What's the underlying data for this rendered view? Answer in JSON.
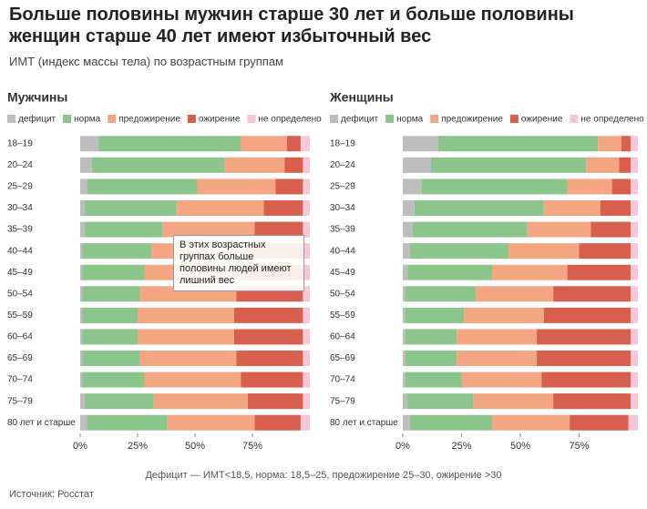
{
  "title": "Больше половины мужчин старше 30 лет и больше половины женщин старше 40 лет имеют избыточный вес",
  "subtitle": "ИМТ (индекс массы тела) по возрастным группам",
  "annotation": "В этих возрастных группах больше половины людей имеют лишний вес",
  "footnote": "Дефицит — ИМТ<18,5, норма: 18,5–25, предожирение 25–30, ожирение >30",
  "source": "Источник: Росстат",
  "chart_data": [
    {
      "type": "bar",
      "orientation": "horizontal",
      "stacked": true,
      "title": "Мужчины",
      "categories": [
        "18–19",
        "20–24",
        "25–29",
        "30–34",
        "35–39",
        "40–44",
        "45–49",
        "50–54",
        "55–59",
        "60–64",
        "65–69",
        "70–74",
        "75–79",
        "80 лет и старше"
      ],
      "series": [
        {
          "name": "дефицит",
          "color": "#bdbdbd",
          "values": [
            8,
            5,
            3,
            2,
            2,
            1,
            1,
            1,
            1,
            1,
            1,
            1,
            2,
            3
          ]
        },
        {
          "name": "норма",
          "color": "#8cc58c",
          "values": [
            62,
            58,
            48,
            40,
            34,
            30,
            27,
            25,
            24,
            24,
            25,
            27,
            30,
            35
          ]
        },
        {
          "name": "предожирение",
          "color": "#f4a582",
          "values": [
            20,
            26,
            34,
            38,
            40,
            41,
            42,
            42,
            42,
            42,
            42,
            42,
            41,
            38
          ]
        },
        {
          "name": "ожирение",
          "color": "#d6604d",
          "values": [
            6,
            8,
            12,
            17,
            21,
            25,
            27,
            29,
            30,
            30,
            29,
            27,
            24,
            20
          ]
        },
        {
          "name": "не определено",
          "color": "#f7c6d9",
          "values": [
            4,
            3,
            3,
            3,
            3,
            3,
            3,
            3,
            3,
            3,
            3,
            3,
            3,
            4
          ]
        }
      ],
      "xlim": [
        0,
        100
      ],
      "xticks": [
        {
          "value": 0,
          "label": "0%"
        },
        {
          "value": 25,
          "label": "25%"
        },
        {
          "value": 50,
          "label": "50%"
        },
        {
          "value": 75,
          "label": "75%"
        }
      ]
    },
    {
      "type": "bar",
      "orientation": "horizontal",
      "stacked": true,
      "title": "Женщины",
      "categories": [
        "18–19",
        "20–24",
        "25–29",
        "30–34",
        "35–39",
        "40–44",
        "45–49",
        "50–54",
        "55–59",
        "60–64",
        "65–69",
        "70–74",
        "75–79",
        "80 лет и старше"
      ],
      "series": [
        {
          "name": "дефицит",
          "color": "#bdbdbd",
          "values": [
            15,
            12,
            8,
            5,
            4,
            3,
            2,
            1,
            1,
            1,
            1,
            1,
            2,
            3
          ]
        },
        {
          "name": "норма",
          "color": "#8cc58c",
          "values": [
            68,
            66,
            62,
            55,
            49,
            42,
            36,
            30,
            25,
            22,
            22,
            24,
            28,
            35
          ]
        },
        {
          "name": "предожирение",
          "color": "#f4a582",
          "values": [
            10,
            14,
            19,
            24,
            27,
            30,
            32,
            33,
            34,
            34,
            34,
            34,
            34,
            33
          ]
        },
        {
          "name": "ожирение",
          "color": "#d6604d",
          "values": [
            4,
            5,
            8,
            13,
            17,
            22,
            27,
            33,
            37,
            40,
            40,
            38,
            33,
            25
          ]
        },
        {
          "name": "не определено",
          "color": "#f7c6d9",
          "values": [
            3,
            3,
            3,
            3,
            3,
            3,
            3,
            3,
            3,
            3,
            3,
            3,
            3,
            4
          ]
        }
      ],
      "xlim": [
        0,
        100
      ],
      "xticks": [
        {
          "value": 0,
          "label": "0%"
        },
        {
          "value": 25,
          "label": "25%"
        },
        {
          "value": 50,
          "label": "50%"
        },
        {
          "value": 75,
          "label": "75%"
        }
      ]
    }
  ]
}
